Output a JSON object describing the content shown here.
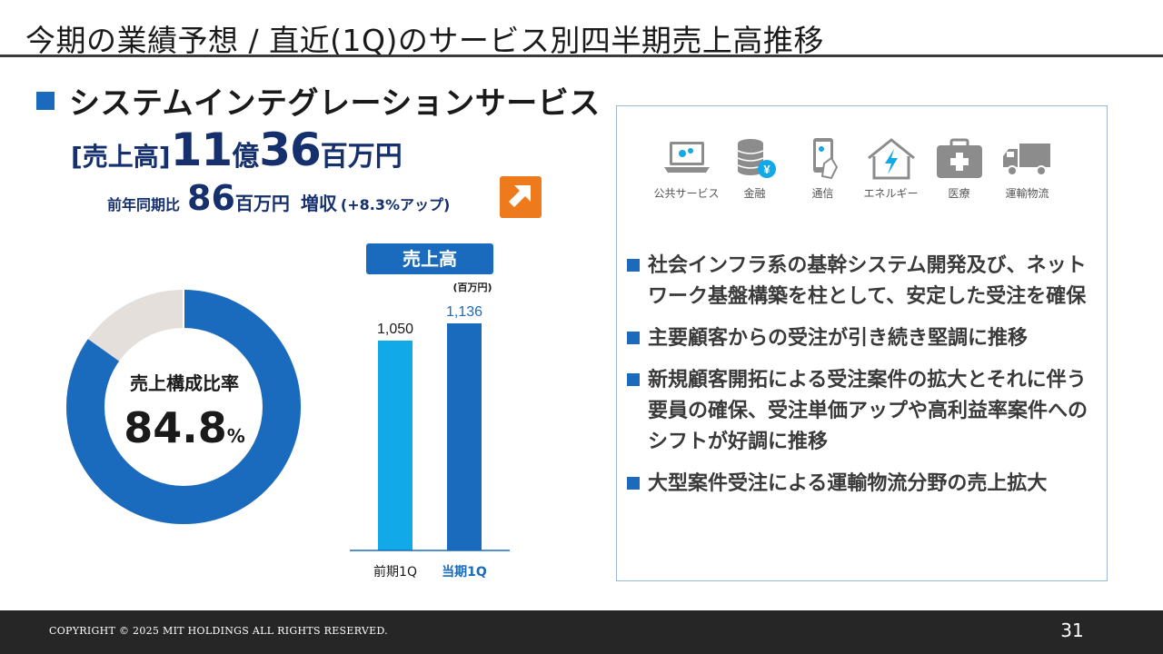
{
  "page": {
    "title": "今期の業績予想 / 直近(1Q)のサービス別四半期売上高推移"
  },
  "section": {
    "title": "システムインテグレーションサービス"
  },
  "kpi": {
    "label": "[売上高]",
    "oku_value": "11",
    "oku_unit": "億",
    "man_value": "36",
    "man_unit": "百万円",
    "yoy_label": "前年同期比",
    "yoy_value": "86",
    "yoy_unit": "百万円",
    "yoy_change": "増収",
    "yoy_pct": "(+8.3%アップ)",
    "trend_icon": "arrow-up-right-icon",
    "badge_color": "#ee7a1e"
  },
  "donut": {
    "label": "売上構成比率",
    "value": "84.8",
    "unit": "%",
    "share": 0.848,
    "color_main": "#1a6bbd",
    "color_rest": "#e4dfdb"
  },
  "chart_data": {
    "type": "bar",
    "title": "売上高",
    "unit_label": "(百万円)",
    "categories": [
      "前期1Q",
      "当期1Q"
    ],
    "values": [
      1050,
      1136
    ],
    "value_labels": [
      "1,050",
      "1,136"
    ],
    "colors": [
      "#12a9e8",
      "#1a6bbd"
    ],
    "category_colors": [
      "#1a1a1a",
      "#1a6bbd"
    ]
  },
  "industries": [
    {
      "label": "公共サービス",
      "icon": "laptop-gear-icon"
    },
    {
      "label": "金融",
      "icon": "coins-yen-icon"
    },
    {
      "label": "通信",
      "icon": "smartphone-icon"
    },
    {
      "label": "エネルギー",
      "icon": "house-lightning-icon"
    },
    {
      "label": "医療",
      "icon": "medical-kit-icon"
    },
    {
      "label": "運輸物流",
      "icon": "truck-icon"
    }
  ],
  "bullets": [
    "社会インフラ系の基幹システム開発及び、ネットワーク基盤構築を柱として、安定した受注を確保",
    "主要顧客からの受注が引き続き堅調に推移",
    "新規顧客開拓による受注案件の拡大とそれに伴う要員の確保、受注単価アップや高利益率案件へのシフトが好調に推移",
    "大型案件受注による運輸物流分野の売上拡大"
  ],
  "footer": {
    "copyright": "COPYRIGHT © 2025 MIT HOLDINGS ALL RIGHTS RESERVED.",
    "page_number": "31"
  }
}
